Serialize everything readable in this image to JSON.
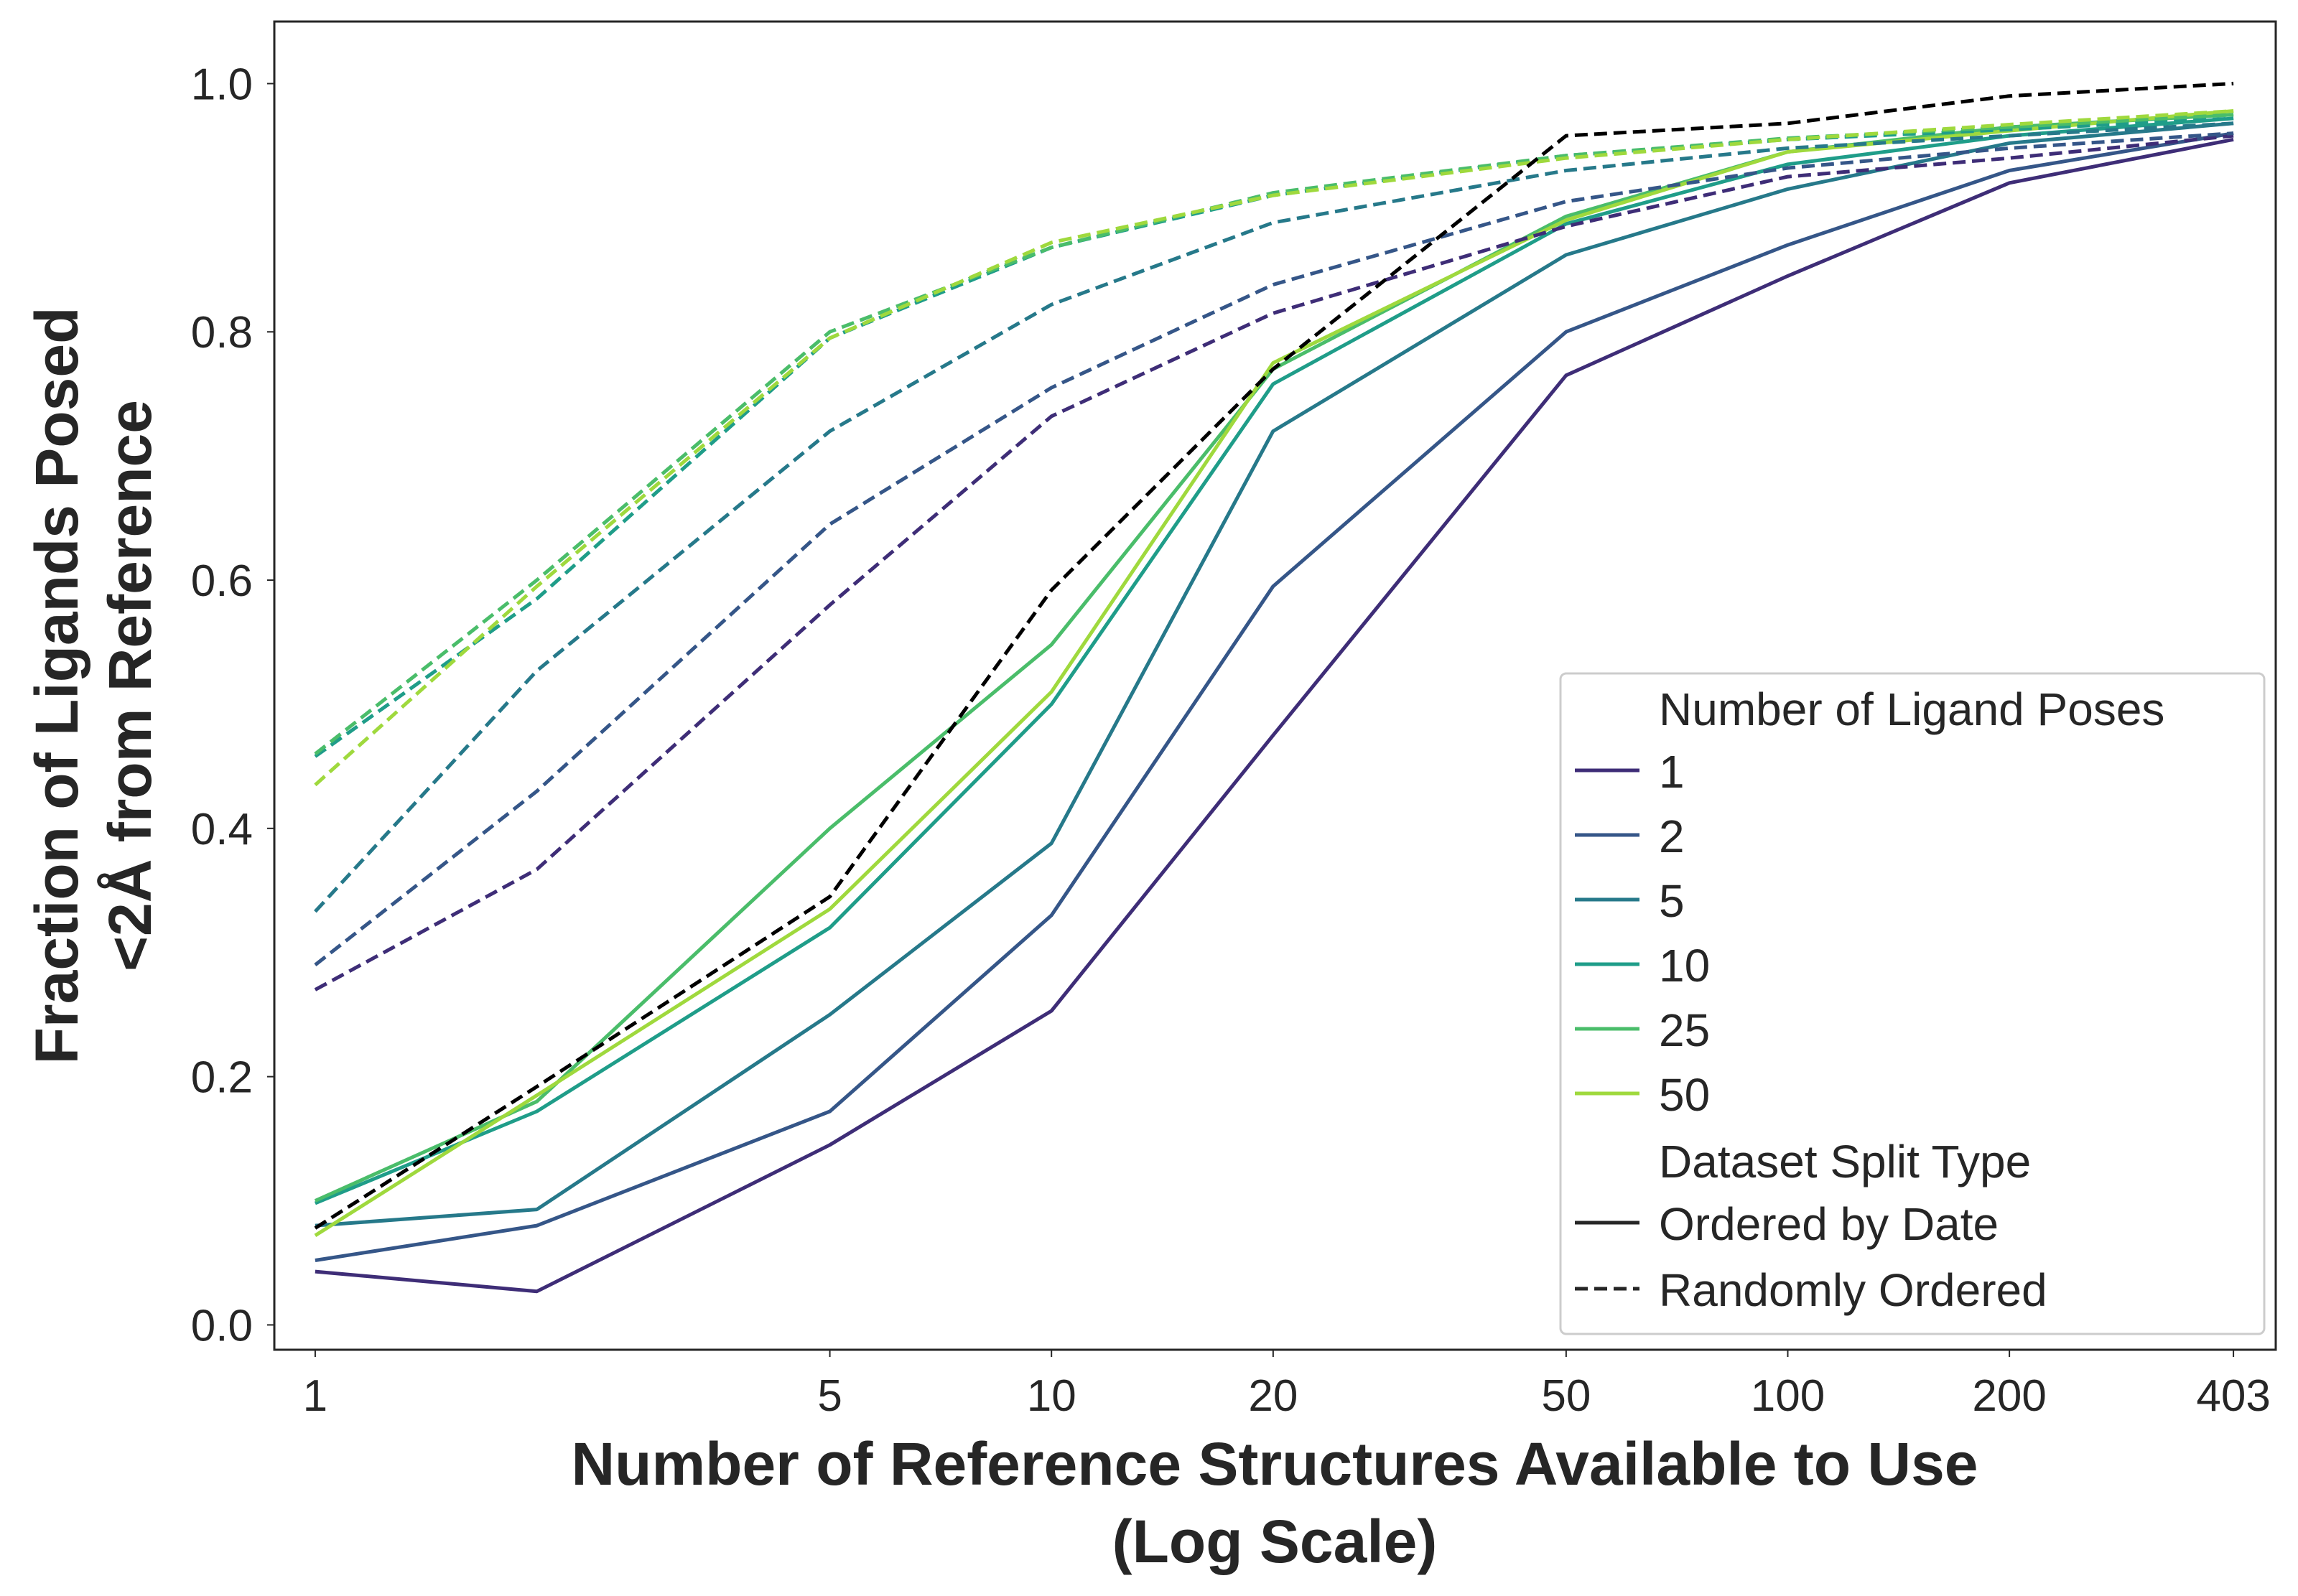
{
  "chart_data": {
    "type": "line",
    "xlabel": [
      "Number of Reference Structures Available to Use",
      "(Log Scale)"
    ],
    "ylabel": [
      "Fraction of Ligands Posed",
      "<2Å from Reference"
    ],
    "xscale": "log",
    "xlim": [
      0.88,
      460
    ],
    "ylim": [
      -0.02,
      1.05
    ],
    "x_ticks": [
      1,
      5,
      10,
      20,
      50,
      100,
      200,
      403
    ],
    "x_tick_labels": [
      "1",
      "5",
      "10",
      "20",
      "50",
      "100",
      "200",
      "403"
    ],
    "y_ticks": [
      0.0,
      0.2,
      0.4,
      0.6,
      0.8,
      1.0
    ],
    "y_tick_labels": [
      "0.0",
      "0.2",
      "0.4",
      "0.6",
      "0.8",
      "1.0"
    ],
    "grid": false,
    "legend": {
      "position": "lower-right",
      "hue_title": "Number of Ligand Poses",
      "hue_entries": [
        {
          "label": "1",
          "color": "#3e2d77"
        },
        {
          "label": "2",
          "color": "#355688"
        },
        {
          "label": "5",
          "color": "#26798a"
        },
        {
          "label": "10",
          "color": "#1f9d89"
        },
        {
          "label": "25",
          "color": "#4abd6a"
        },
        {
          "label": "50",
          "color": "#9fd93d"
        }
      ],
      "style_title": "Dataset Split Type",
      "style_entries": [
        {
          "label": "Ordered by Date",
          "dash": "solid",
          "color": "#262626"
        },
        {
          "label": "Randomly Ordered",
          "dash": "dashed",
          "color": "#262626"
        }
      ]
    },
    "x": [
      1,
      2,
      5,
      10,
      20,
      50,
      100,
      200,
      403
    ],
    "series": [
      {
        "poses": "1",
        "split": "Ordered by Date",
        "color": "#3e2d77",
        "dash": "solid",
        "values": [
          0.043,
          0.027,
          0.145,
          0.253,
          0.475,
          0.765,
          0.845,
          0.92,
          0.955
        ]
      },
      {
        "poses": "2",
        "split": "Ordered by Date",
        "color": "#355688",
        "dash": "solid",
        "values": [
          0.052,
          0.08,
          0.172,
          0.33,
          0.595,
          0.8,
          0.87,
          0.93,
          0.96
        ]
      },
      {
        "poses": "5",
        "split": "Ordered by Date",
        "color": "#26798a",
        "dash": "solid",
        "values": [
          0.08,
          0.093,
          0.25,
          0.388,
          0.72,
          0.862,
          0.915,
          0.952,
          0.968
        ]
      },
      {
        "poses": "10",
        "split": "Ordered by Date",
        "color": "#1f9d89",
        "dash": "solid",
        "values": [
          0.098,
          0.172,
          0.32,
          0.5,
          0.758,
          0.887,
          0.935,
          0.958,
          0.972
        ]
      },
      {
        "poses": "25",
        "split": "Ordered by Date",
        "color": "#4abd6a",
        "dash": "solid",
        "values": [
          0.1,
          0.18,
          0.4,
          0.548,
          0.77,
          0.893,
          0.945,
          0.965,
          0.975
        ]
      },
      {
        "poses": "50",
        "split": "Ordered by Date",
        "color": "#9fd93d",
        "dash": "solid",
        "values": [
          0.072,
          0.185,
          0.335,
          0.51,
          0.775,
          0.89,
          0.945,
          0.962,
          0.978
        ]
      },
      {
        "poses": "1",
        "split": "Randomly Ordered",
        "color": "#3e2d77",
        "dash": "dashed",
        "values": [
          0.27,
          0.367,
          0.58,
          0.732,
          0.815,
          0.885,
          0.925,
          0.94,
          0.958
        ]
      },
      {
        "poses": "2",
        "split": "Randomly Ordered",
        "color": "#355688",
        "dash": "dashed",
        "values": [
          0.29,
          0.43,
          0.645,
          0.755,
          0.838,
          0.905,
          0.932,
          0.948,
          0.96
        ]
      },
      {
        "poses": "5",
        "split": "Randomly Ordered",
        "color": "#26798a",
        "dash": "dashed",
        "values": [
          0.333,
          0.527,
          0.72,
          0.822,
          0.888,
          0.93,
          0.948,
          0.958,
          0.968
        ]
      },
      {
        "poses": "10",
        "split": "Randomly Ordered",
        "color": "#1f9d89",
        "dash": "dashed",
        "values": [
          0.458,
          0.585,
          0.795,
          0.868,
          0.91,
          0.942,
          0.955,
          0.963,
          0.972
        ]
      },
      {
        "poses": "25",
        "split": "Randomly Ordered",
        "color": "#4abd6a",
        "dash": "dashed",
        "values": [
          0.46,
          0.6,
          0.8,
          0.868,
          0.912,
          0.942,
          0.956,
          0.965,
          0.975
        ]
      },
      {
        "poses": "50",
        "split": "Randomly Ordered",
        "color": "#9fd93d",
        "dash": "dashed",
        "values": [
          0.435,
          0.595,
          0.795,
          0.872,
          0.91,
          0.94,
          0.955,
          0.967,
          0.978
        ]
      },
      {
        "poses": "",
        "split": "Randomly Ordered",
        "color": "#000000",
        "dash": "dashed",
        "values": [
          0.078,
          0.192,
          0.345,
          0.592,
          0.77,
          0.958,
          0.968,
          0.99,
          1.0
        ]
      }
    ]
  }
}
